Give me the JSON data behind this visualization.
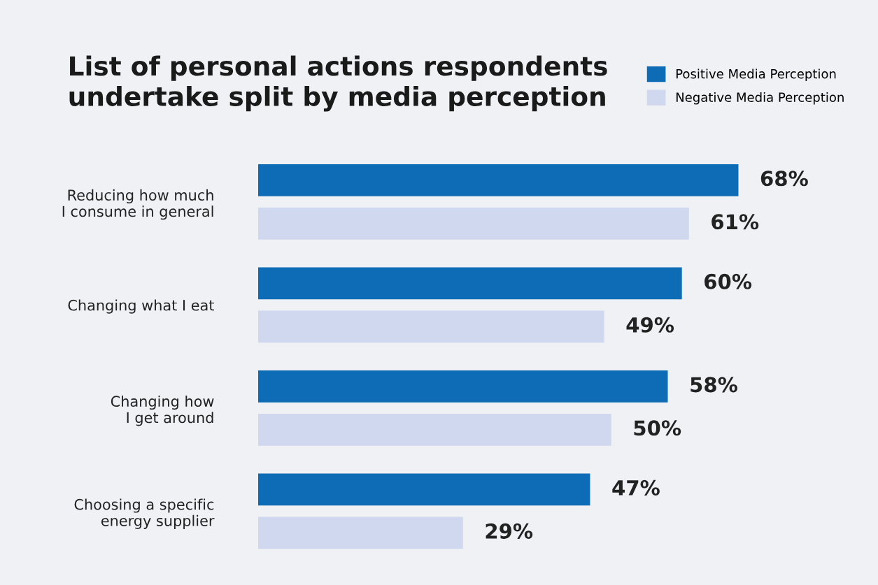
{
  "chart_data": {
    "type": "bar",
    "orientation": "horizontal",
    "title": "List of personal actions respondents\nundertake split by media perception",
    "categories": [
      "Reducing how much\nI consume in general",
      "Changing what I eat",
      "Changing how\nI get around",
      "Choosing a specific\nenergy supplier"
    ],
    "series": [
      {
        "name": "Positive Media Perception",
        "color": "#0d6cb5",
        "values": [
          68,
          60,
          58,
          47
        ],
        "value_labels": [
          "68%",
          "60%",
          "58%",
          "47%"
        ]
      },
      {
        "name": "Negative Media Perception",
        "color": "#cfd8ee",
        "values": [
          61,
          49,
          50,
          29
        ],
        "value_labels": [
          "61%",
          "49%",
          "50%",
          "29%"
        ]
      }
    ],
    "legend": "top right",
    "grid": false,
    "tick_labels": "y"
  }
}
